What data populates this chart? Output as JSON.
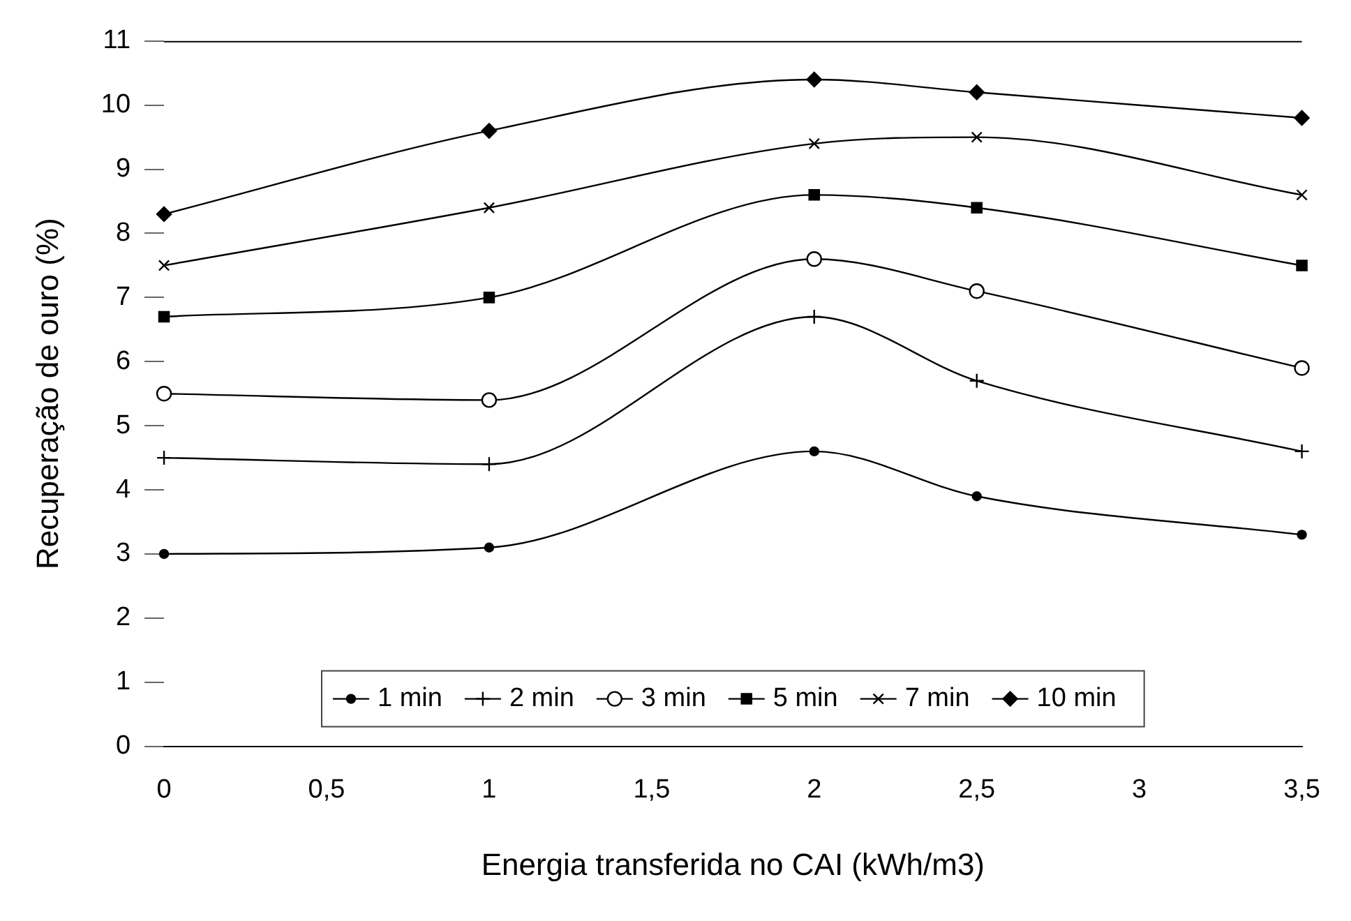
{
  "chart_data": {
    "type": "line",
    "xlabel": "Energia transferida no CAI (kWh/m3)",
    "ylabel": "Recuperação de ouro (%)",
    "x": [
      0,
      1,
      2,
      2.5,
      3.5
    ],
    "xlim": [
      0,
      3.5
    ],
    "xticks": [
      {
        "value": 0,
        "label": "0"
      },
      {
        "value": 0.5,
        "label": "0,5"
      },
      {
        "value": 1,
        "label": "1"
      },
      {
        "value": 1.5,
        "label": "1,5"
      },
      {
        "value": 2,
        "label": "2"
      },
      {
        "value": 2.5,
        "label": "2,5"
      },
      {
        "value": 3,
        "label": "3"
      },
      {
        "value": 3.5,
        "label": "3,5"
      }
    ],
    "ylim": [
      0,
      11
    ],
    "yticks": [
      0,
      1,
      2,
      3,
      4,
      5,
      6,
      7,
      8,
      9,
      10,
      11
    ],
    "legend": "bottom",
    "grid": false,
    "series": [
      {
        "name": "1 min",
        "color": "#000000",
        "marker": "circle",
        "values": [
          3.0,
          3.1,
          4.6,
          3.9,
          3.3
        ]
      },
      {
        "name": "2 min",
        "color": "#000000",
        "marker": "cross",
        "values": [
          4.5,
          4.4,
          6.7,
          5.7,
          4.6
        ]
      },
      {
        "name": "3 min",
        "color": "#000000",
        "marker": "circle",
        "values": [
          5.5,
          5.4,
          7.6,
          7.1,
          5.9
        ]
      },
      {
        "name": "5 min",
        "color": "#000000",
        "marker": "square",
        "values": [
          6.7,
          7.0,
          8.6,
          8.4,
          7.5
        ]
      },
      {
        "name": "7 min",
        "color": "#000000",
        "marker": "cross",
        "values": [
          7.5,
          8.4,
          9.4,
          9.5,
          8.6
        ]
      },
      {
        "name": "10 min",
        "color": "#000000",
        "marker": "diamond",
        "values": [
          8.3,
          9.6,
          10.4,
          10.2,
          9.8
        ]
      }
    ]
  }
}
